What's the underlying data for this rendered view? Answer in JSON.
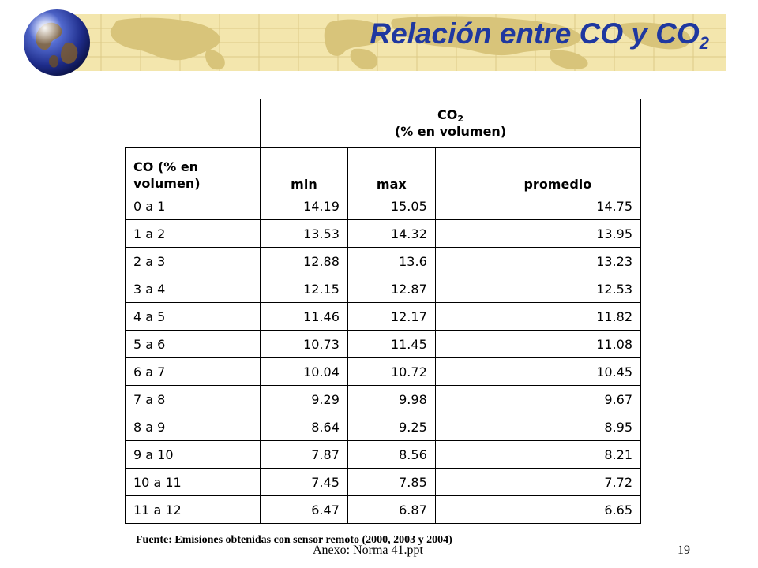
{
  "slide": {
    "title_main": "Relación entre CO y CO",
    "title_sub": "2",
    "footer_file": "Anexo: Norma 41.ppt",
    "page_number": "19",
    "source_note": "Fuente: Emisiones obtenidas con sensor remoto (2000, 2003 y 2004)"
  },
  "table": {
    "group_header_main": "CO",
    "group_header_sub": "2",
    "group_header_line2": "(% en volumen)",
    "row_header_label": "CO (% en volumen)",
    "columns": [
      "min",
      "max",
      "promedio"
    ],
    "rows": [
      {
        "label": "0 a 1",
        "min": "14.19",
        "max": "15.05",
        "promedio": "14.75"
      },
      {
        "label": "1 a 2",
        "min": "13.53",
        "max": "14.32",
        "promedio": "13.95"
      },
      {
        "label": "2 a 3",
        "min": "12.88",
        "max": "13.6",
        "promedio": "13.23"
      },
      {
        "label": "3 a 4",
        "min": "12.15",
        "max": "12.87",
        "promedio": "12.53"
      },
      {
        "label": "4 a 5",
        "min": "11.46",
        "max": "12.17",
        "promedio": "11.82"
      },
      {
        "label": "5 a 6",
        "min": "10.73",
        "max": "11.45",
        "promedio": "11.08"
      },
      {
        "label": "6 a 7",
        "min": "10.04",
        "max": "10.72",
        "promedio": "10.45"
      },
      {
        "label": "7 a 8",
        "min": "9.29",
        "max": "9.98",
        "promedio": "9.67"
      },
      {
        "label": "8 a 9",
        "min": "8.64",
        "max": "9.25",
        "promedio": "8.95"
      },
      {
        "label": "9 a 10",
        "min": "7.87",
        "max": "8.56",
        "promedio": "8.21"
      },
      {
        "label": "10 a 11",
        "min": "7.45",
        "max": "7.85",
        "promedio": "7.72"
      },
      {
        "label": "11 a 12",
        "min": "6.47",
        "max": "6.87",
        "promedio": "6.65"
      }
    ]
  },
  "colors": {
    "title": "#1f38a0",
    "banner": "#f3e6ad",
    "map": "#d8c47a"
  },
  "icons": {
    "globe": "globe-icon",
    "map": "world-map-graphic"
  }
}
